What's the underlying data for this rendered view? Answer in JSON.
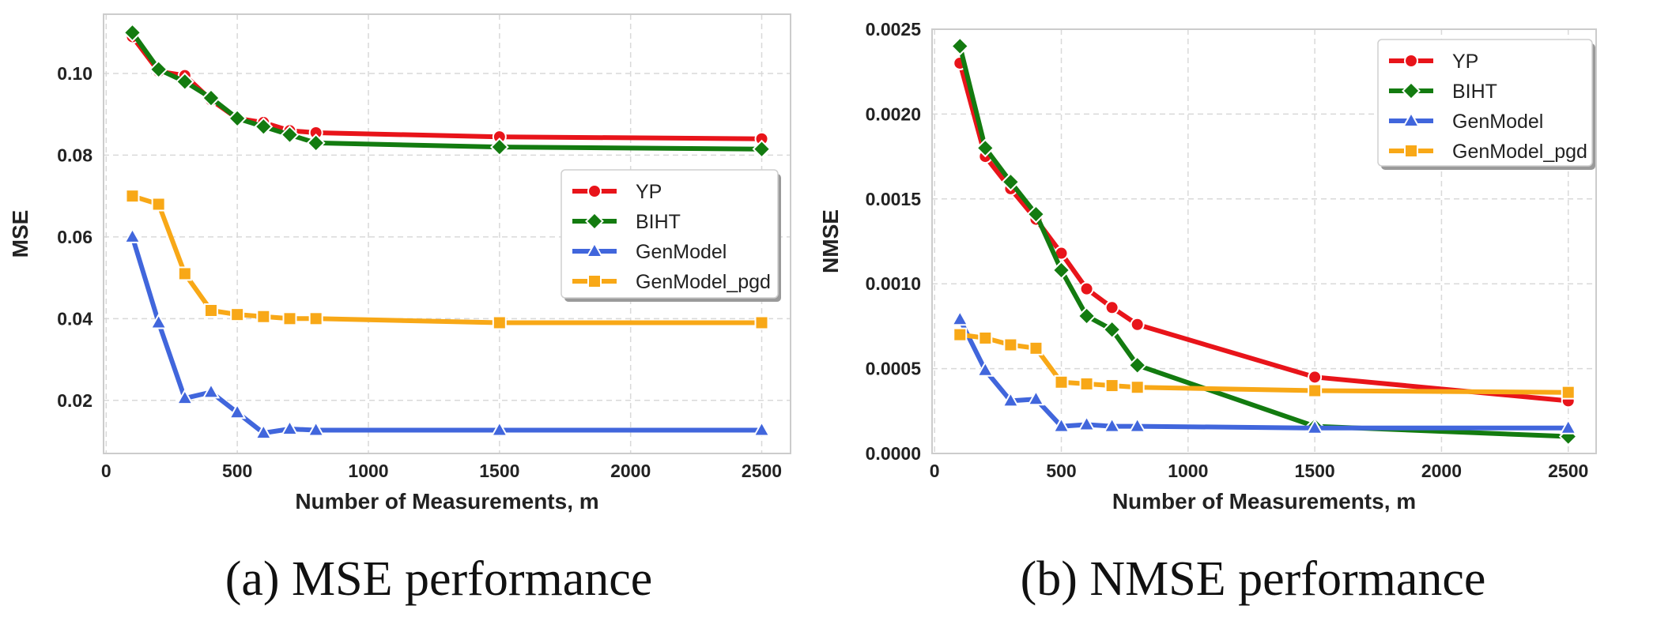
{
  "captions": [
    "(a) MSE performance",
    "(b) NMSE performance"
  ],
  "chart_data": [
    {
      "type": "line",
      "title": "",
      "xlabel": "Number of Measurements, m",
      "ylabel": "MSE",
      "xlim": [
        -10,
        2610
      ],
      "ylim": [
        0.007,
        0.1145
      ],
      "xticks": [
        0,
        500,
        1000,
        1500,
        2000,
        2500
      ],
      "xtick_labels": [
        "0",
        "500",
        "1000",
        "1500",
        "2000",
        "2500"
      ],
      "yticks": [
        0.02,
        0.04,
        0.06,
        0.08,
        0.1
      ],
      "ytick_labels": [
        "0.02",
        "0.04",
        "0.06",
        "0.08",
        "0.10"
      ],
      "grid": true,
      "legend_position": "center-right",
      "series": [
        {
          "name": "YP",
          "color": "#e8141a",
          "marker": "circle",
          "x": [
            100,
            200,
            300,
            400,
            500,
            600,
            700,
            800,
            1500,
            2500
          ],
          "y": [
            0.109,
            0.1005,
            0.0995,
            0.0935,
            0.089,
            0.088,
            0.086,
            0.0855,
            0.0845,
            0.084
          ]
        },
        {
          "name": "BIHT",
          "color": "#137b10",
          "marker": "diamond",
          "x": [
            100,
            200,
            300,
            400,
            500,
            600,
            700,
            800,
            1500,
            2500
          ],
          "y": [
            0.11,
            0.101,
            0.098,
            0.094,
            0.089,
            0.087,
            0.085,
            0.083,
            0.082,
            0.0815
          ]
        },
        {
          "name": "GenModel",
          "color": "#4166dc",
          "marker": "triangle",
          "x": [
            100,
            200,
            300,
            400,
            500,
            600,
            700,
            800,
            1500,
            2500
          ],
          "y": [
            0.06,
            0.039,
            0.0205,
            0.022,
            0.017,
            0.012,
            0.013,
            0.0127,
            0.0127,
            0.0127
          ]
        },
        {
          "name": "GenModel_pgd",
          "color": "#f8a817",
          "marker": "square",
          "x": [
            100,
            200,
            300,
            400,
            500,
            600,
            700,
            800,
            1500,
            2500
          ],
          "y": [
            0.07,
            0.068,
            0.051,
            0.042,
            0.041,
            0.0405,
            0.04,
            0.04,
            0.039,
            0.039
          ]
        }
      ]
    },
    {
      "type": "line",
      "title": "",
      "xlabel": "Number of Measurements, m",
      "ylabel": "NMSE",
      "xlim": [
        -10,
        2610
      ],
      "ylim": [
        0.0,
        0.0025
      ],
      "xticks": [
        0,
        500,
        1000,
        1500,
        2000,
        2500
      ],
      "xtick_labels": [
        "0",
        "500",
        "1000",
        "1500",
        "2000",
        "2500"
      ],
      "yticks": [
        0.0,
        0.0005,
        0.001,
        0.0015,
        0.002,
        0.0025
      ],
      "ytick_labels": [
        "0.0000",
        "0.0005",
        "0.0010",
        "0.0015",
        "0.0020",
        "0.0025"
      ],
      "grid": true,
      "legend_position": "top-right",
      "series": [
        {
          "name": "YP",
          "color": "#e8141a",
          "marker": "circle",
          "x": [
            100,
            200,
            300,
            400,
            500,
            600,
            700,
            800,
            1500,
            2500
          ],
          "y": [
            0.0023,
            0.00175,
            0.00156,
            0.00138,
            0.00118,
            0.00097,
            0.00086,
            0.00076,
            0.00045,
            0.00031
          ]
        },
        {
          "name": "BIHT",
          "color": "#137b10",
          "marker": "diamond",
          "x": [
            100,
            200,
            300,
            400,
            500,
            600,
            700,
            800,
            1500,
            2500
          ],
          "y": [
            0.0024,
            0.0018,
            0.0016,
            0.00141,
            0.00108,
            0.00081,
            0.00073,
            0.00052,
            0.00016,
            0.0001
          ]
        },
        {
          "name": "GenModel",
          "color": "#4166dc",
          "marker": "triangle",
          "x": [
            100,
            200,
            300,
            400,
            500,
            600,
            700,
            800,
            1500,
            2500
          ],
          "y": [
            0.00079,
            0.00049,
            0.00031,
            0.00032,
            0.00016,
            0.00017,
            0.00016,
            0.00016,
            0.00015,
            0.00015
          ]
        },
        {
          "name": "GenModel_pgd",
          "color": "#f8a817",
          "marker": "square",
          "x": [
            100,
            200,
            300,
            400,
            500,
            600,
            700,
            800,
            1500,
            2500
          ],
          "y": [
            0.0007,
            0.00068,
            0.00064,
            0.00062,
            0.00042,
            0.00041,
            0.0004,
            0.00039,
            0.00037,
            0.00036
          ]
        }
      ]
    }
  ]
}
